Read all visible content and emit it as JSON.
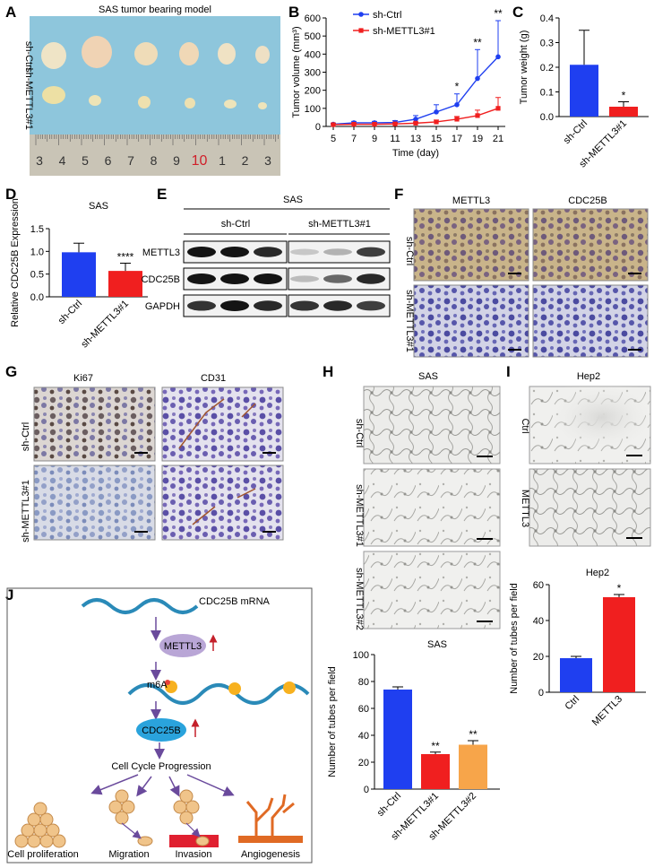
{
  "panels": {
    "A": {
      "letter": "A",
      "title": "SAS tumor bearing model",
      "row_labels": [
        "sh-Ctrl",
        "sh-METTL3#1"
      ],
      "ruler_numbers": [
        "3",
        "4",
        "5",
        "6",
        "7",
        "8",
        "9",
        "10",
        "1",
        "2",
        "3"
      ],
      "ruler_highlight": "10",
      "ruler_highlight_color": "#d0202a"
    },
    "B": {
      "letter": "B",
      "chart_data": {
        "type": "line",
        "x": [
          5,
          7,
          9,
          11,
          13,
          15,
          17,
          19,
          21
        ],
        "xlabel": "Time (day)",
        "ylabel": "Tumor  volume (mm³)",
        "ylim": [
          0,
          600
        ],
        "yticks": [
          0,
          100,
          200,
          300,
          400,
          500,
          600
        ],
        "series": [
          {
            "name": "sh-Ctrl",
            "color": "#1f3ff0",
            "values": [
              12,
              20,
              20,
              22,
              40,
              80,
              120,
              265,
              385
            ],
            "err": [
              5,
              8,
              8,
              10,
              20,
              40,
              60,
              160,
              200
            ]
          },
          {
            "name": "sh-METTL3#1",
            "color": "#f01f1f",
            "values": [
              10,
              12,
              12,
              14,
              18,
              25,
              40,
              60,
              100
            ],
            "err": [
              3,
              4,
              4,
              5,
              6,
              10,
              15,
              30,
              60
            ]
          }
        ],
        "annotations": [
          {
            "x": 17,
            "label": "*"
          },
          {
            "x": 19,
            "label": "**"
          },
          {
            "x": 21,
            "label": "**"
          }
        ]
      }
    },
    "C": {
      "letter": "C",
      "chart_data": {
        "type": "bar",
        "categories": [
          "sh-Ctrl",
          "sh-METTL3#1"
        ],
        "values": [
          0.21,
          0.04
        ],
        "err": [
          0.14,
          0.02
        ],
        "colors": [
          "#1f3ff0",
          "#f01f1f"
        ],
        "ylabel": "Tumor weight (g)",
        "ylim": [
          0,
          0.4
        ],
        "yticks": [
          "0.0",
          "0.1",
          "0.2",
          "0.3",
          "0.4"
        ],
        "sig": [
          {
            "index": 1,
            "label": "*"
          }
        ]
      }
    },
    "D": {
      "letter": "D",
      "chart_data": {
        "type": "bar",
        "title": "SAS",
        "categories": [
          "sh-Ctrl",
          "sh-METTL3#1"
        ],
        "values": [
          0.98,
          0.57
        ],
        "err": [
          0.2,
          0.17
        ],
        "colors": [
          "#1f3ff0",
          "#f01f1f"
        ],
        "ylabel": "Relative CDC25B Expression",
        "ylim": [
          0,
          1.5
        ],
        "yticks": [
          "0.0",
          "0.5",
          "1.0",
          "1.5"
        ],
        "sig": [
          {
            "index": 1,
            "label": "****"
          }
        ]
      }
    },
    "E": {
      "letter": "E",
      "title": "SAS",
      "groups": [
        "sh-Ctrl",
        "sh-METTL3#1"
      ],
      "bands": [
        "METTL3",
        "CDC25B",
        "GAPDH"
      ]
    },
    "F": {
      "letter": "F",
      "col_labels": [
        "METTL3",
        "CDC25B"
      ],
      "row_labels": [
        "sh-Ctrl",
        "sh-METTL3#1"
      ]
    },
    "G": {
      "letter": "G",
      "col_labels": [
        "Ki67",
        "CD31"
      ],
      "row_labels": [
        "sh-Ctrl",
        "sh-METTL3#1"
      ]
    },
    "H": {
      "letter": "H",
      "title": "SAS",
      "row_labels": [
        "sh-Ctrl",
        "sh-METTL3#1",
        "sh-METTL3#2"
      ],
      "chart_data": {
        "type": "bar",
        "title": "SAS",
        "categories": [
          "sh-Ctrl",
          "sh-METTL3#1",
          "sh-METTL3#2"
        ],
        "values": [
          74,
          26,
          33
        ],
        "err": [
          2,
          1.5,
          3
        ],
        "colors": [
          "#1f3ff0",
          "#f01f1f",
          "#f7a54a"
        ],
        "ylabel": "Number of tubes per field",
        "ylim": [
          0,
          100
        ],
        "yticks": [
          "0",
          "20",
          "40",
          "60",
          "80",
          "100"
        ],
        "sig": [
          {
            "index": 1,
            "label": "**"
          },
          {
            "index": 2,
            "label": "**"
          }
        ]
      }
    },
    "I": {
      "letter": "I",
      "title": "Hep2",
      "row_labels": [
        "Ctrl",
        "METTL3"
      ],
      "chart_data": {
        "type": "bar",
        "title": "Hep2",
        "categories": [
          "Ctrl",
          "METTL3"
        ],
        "values": [
          19,
          53
        ],
        "err": [
          1,
          1.5
        ],
        "colors": [
          "#1f3ff0",
          "#f01f1f"
        ],
        "ylabel": "Number of tubes per field",
        "ylim": [
          0,
          60
        ],
        "yticks": [
          "0",
          "20",
          "40",
          "60"
        ],
        "sig": [
          {
            "index": 1,
            "label": "*"
          }
        ]
      }
    },
    "J": {
      "letter": "J",
      "mrna": "CDC25B mRNA",
      "enzyme": "METTL3",
      "mark": "m6A",
      "protein": "CDC25B",
      "progression": "Cell Cycle Progression",
      "outcomes": [
        "Cell proliferation",
        "Migration",
        "Invasion",
        "Angiogenesis"
      ]
    }
  }
}
